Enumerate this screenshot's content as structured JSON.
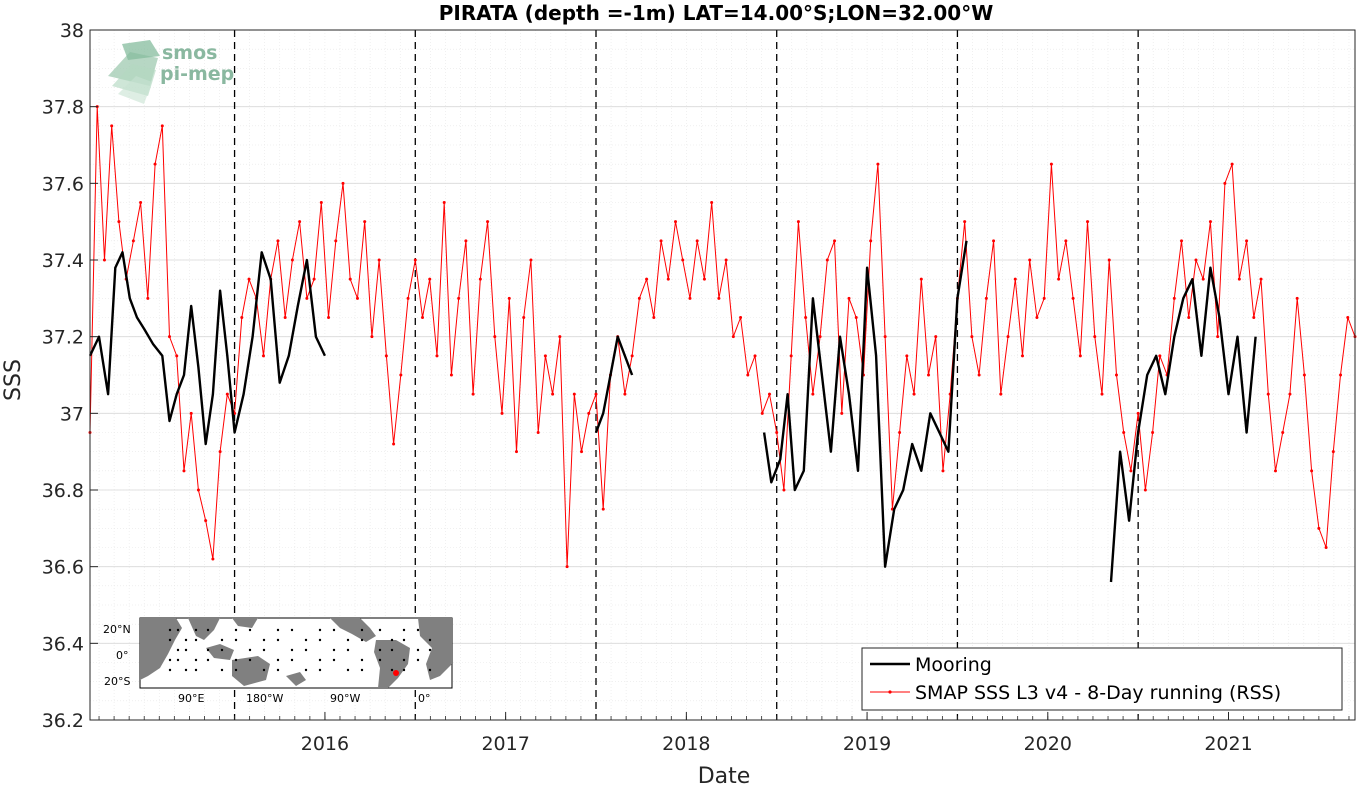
{
  "chart_data": {
    "type": "line",
    "title": "PIRATA (depth =-1m) LAT=14.00°S;LON=32.00°W",
    "xlabel": "Date",
    "ylabel": "SSS",
    "xlim": [
      2015.2,
      2022.2
    ],
    "ylim": [
      36.2,
      38.0
    ],
    "yticks": [
      "36.2",
      "36.4",
      "36.6",
      "36.8",
      "37",
      "37.2",
      "37.4",
      "37.6",
      "37.8",
      "38"
    ],
    "xticks": [
      "2016",
      "2017",
      "2018",
      "2019",
      "2020",
      "2021"
    ],
    "year_lines": [
      2016,
      2017,
      2018,
      2019,
      2020,
      2021
    ],
    "grid": "on",
    "legend_position": "bottom-right",
    "series": [
      {
        "name": "Mooring",
        "color": "#000000",
        "segments": [
          {
            "x": [
              2015.2,
              2015.25,
              2015.3,
              2015.34,
              2015.38,
              2015.42,
              2015.46,
              2015.5,
              2015.55,
              2015.6,
              2015.64,
              2015.68,
              2015.72,
              2015.76,
              2015.8,
              2015.84,
              2015.88,
              2015.92,
              2015.96,
              2016.0,
              2016.05,
              2016.1,
              2016.15,
              2016.2,
              2016.25,
              2016.3,
              2016.35,
              2016.4,
              2016.45,
              2016.5
            ],
            "y": [
              37.15,
              37.2,
              37.05,
              37.38,
              37.42,
              37.3,
              37.25,
              37.22,
              37.18,
              37.15,
              36.98,
              37.05,
              37.1,
              37.28,
              37.12,
              36.92,
              37.05,
              37.32,
              37.15,
              36.95,
              37.05,
              37.2,
              37.42,
              37.35,
              37.08,
              37.15,
              37.28,
              37.4,
              37.2,
              37.15
            ]
          },
          {
            "x": [
              2018.0,
              2018.04,
              2018.08,
              2018.12,
              2018.16,
              2018.2
            ],
            "y": [
              36.95,
              37.0,
              37.1,
              37.2,
              37.15,
              37.1
            ]
          },
          {
            "x": [
              2018.93,
              2018.97,
              2019.02,
              2019.06,
              2019.1,
              2019.15,
              2019.2,
              2019.25,
              2019.3,
              2019.35,
              2019.4,
              2019.45,
              2019.5,
              2019.55,
              2019.6,
              2019.65,
              2019.7,
              2019.75,
              2019.8,
              2019.85,
              2019.9,
              2019.95,
              2020.0,
              2020.05
            ],
            "y": [
              36.95,
              36.82,
              36.88,
              37.05,
              36.8,
              36.85,
              37.3,
              37.1,
              36.9,
              37.2,
              37.05,
              36.85,
              37.38,
              37.15,
              36.6,
              36.75,
              36.8,
              36.92,
              36.85,
              37.0,
              36.95,
              36.9,
              37.3,
              37.45
            ]
          },
          {
            "x": [
              2020.85,
              2020.9,
              2020.95,
              2021.0,
              2021.05,
              2021.1,
              2021.15,
              2021.2,
              2021.25,
              2021.3,
              2021.35,
              2021.4,
              2021.45,
              2021.5,
              2021.55,
              2021.6,
              2021.65
            ],
            "y": [
              36.56,
              36.9,
              36.72,
              36.95,
              37.1,
              37.15,
              37.05,
              37.2,
              37.3,
              37.35,
              37.15,
              37.38,
              37.25,
              37.05,
              37.2,
              36.95,
              37.2
            ]
          }
        ]
      },
      {
        "name": "SMAP SSS L3 v4 - 8-Day running (RSS)",
        "color": "#ff0000",
        "x": [
          2015.2,
          2015.24,
          2015.28,
          2015.32,
          2015.36,
          2015.4,
          2015.44,
          2015.48,
          2015.52,
          2015.56,
          2015.6,
          2015.64,
          2015.68,
          2015.72,
          2015.76,
          2015.8,
          2015.84,
          2015.88,
          2015.92,
          2015.96,
          2016.0,
          2016.04,
          2016.08,
          2016.12,
          2016.16,
          2016.2,
          2016.24,
          2016.28,
          2016.32,
          2016.36,
          2016.4,
          2016.44,
          2016.48,
          2016.52,
          2016.56,
          2016.6,
          2016.64,
          2016.68,
          2016.72,
          2016.76,
          2016.8,
          2016.84,
          2016.88,
          2016.92,
          2016.96,
          2017.0,
          2017.04,
          2017.08,
          2017.12,
          2017.16,
          2017.2,
          2017.24,
          2017.28,
          2017.32,
          2017.36,
          2017.4,
          2017.44,
          2017.48,
          2017.52,
          2017.56,
          2017.6,
          2017.64,
          2017.68,
          2017.72,
          2017.76,
          2017.8,
          2017.84,
          2017.88,
          2017.92,
          2017.96,
          2018.0,
          2018.04,
          2018.08,
          2018.12,
          2018.16,
          2018.2,
          2018.24,
          2018.28,
          2018.32,
          2018.36,
          2018.4,
          2018.44,
          2018.48,
          2018.52,
          2018.56,
          2018.6,
          2018.64,
          2018.68,
          2018.72,
          2018.76,
          2018.8,
          2018.84,
          2018.88,
          2018.92,
          2018.96,
          2019.0,
          2019.04,
          2019.08,
          2019.12,
          2019.16,
          2019.2,
          2019.24,
          2019.28,
          2019.32,
          2019.36,
          2019.4,
          2019.44,
          2019.48,
          2019.52,
          2019.56,
          2019.6,
          2019.64,
          2019.68,
          2019.72,
          2019.76,
          2019.8,
          2019.84,
          2019.88,
          2019.92,
          2019.96,
          2020.0,
          2020.04,
          2020.08,
          2020.12,
          2020.16,
          2020.2,
          2020.24,
          2020.28,
          2020.32,
          2020.36,
          2020.4,
          2020.44,
          2020.48,
          2020.52,
          2020.56,
          2020.6,
          2020.64,
          2020.68,
          2020.72,
          2020.76,
          2020.8,
          2020.84,
          2020.88,
          2020.92,
          2020.96,
          2021.0,
          2021.04,
          2021.08,
          2021.12,
          2021.16,
          2021.2,
          2021.24,
          2021.28,
          2021.32,
          2021.36,
          2021.4,
          2021.44,
          2021.48,
          2021.52,
          2021.56,
          2021.6,
          2021.64,
          2021.68,
          2021.72,
          2021.76,
          2021.8,
          2021.84,
          2021.88,
          2021.92,
          2021.96,
          2022.0,
          2022.04,
          2022.08,
          2022.12,
          2022.16,
          2022.2
        ],
        "y": [
          36.95,
          37.8,
          37.4,
          37.75,
          37.5,
          37.35,
          37.45,
          37.55,
          37.3,
          37.65,
          37.75,
          37.2,
          37.15,
          36.85,
          37.0,
          36.8,
          36.72,
          36.62,
          36.9,
          37.05,
          37.0,
          37.25,
          37.35,
          37.3,
          37.15,
          37.35,
          37.45,
          37.25,
          37.4,
          37.5,
          37.3,
          37.35,
          37.55,
          37.25,
          37.45,
          37.6,
          37.35,
          37.3,
          37.5,
          37.2,
          37.4,
          37.15,
          36.92,
          37.1,
          37.3,
          37.4,
          37.25,
          37.35,
          37.15,
          37.55,
          37.1,
          37.3,
          37.45,
          37.05,
          37.35,
          37.5,
          37.2,
          37.0,
          37.3,
          36.9,
          37.25,
          37.4,
          36.95,
          37.15,
          37.05,
          37.2,
          36.6,
          37.05,
          36.9,
          37.0,
          37.05,
          36.75,
          37.1,
          37.2,
          37.05,
          37.15,
          37.3,
          37.35,
          37.25,
          37.45,
          37.35,
          37.5,
          37.4,
          37.3,
          37.45,
          37.35,
          37.55,
          37.3,
          37.4,
          37.2,
          37.25,
          37.1,
          37.15,
          37.0,
          37.05,
          36.95,
          36.8,
          37.15,
          37.5,
          37.25,
          37.05,
          37.2,
          37.4,
          37.45,
          37.0,
          37.3,
          37.25,
          37.1,
          37.45,
          37.65,
          37.2,
          36.75,
          36.95,
          37.15,
          37.05,
          37.35,
          37.1,
          37.2,
          36.85,
          37.05,
          37.3,
          37.5,
          37.2,
          37.1,
          37.3,
          37.45,
          37.05,
          37.2,
          37.35,
          37.15,
          37.4,
          37.25,
          37.3,
          37.65,
          37.35,
          37.45,
          37.3,
          37.15,
          37.5,
          37.2,
          37.05,
          37.4,
          37.1,
          36.95,
          36.85,
          37.0,
          36.8,
          36.95,
          37.15,
          37.1,
          37.3,
          37.45,
          37.25,
          37.4,
          37.35,
          37.5,
          37.2,
          37.6,
          37.65,
          37.35,
          37.45,
          37.25,
          37.35,
          37.05,
          36.85,
          36.95,
          37.05,
          37.3,
          37.1,
          36.85,
          36.7,
          36.65,
          36.9,
          37.1,
          37.25,
          37.2
        ]
      }
    ],
    "inset_map": {
      "lat_labels": [
        "20°N",
        "0°",
        "20°S"
      ],
      "lon_labels": [
        "90°E",
        "180°W",
        "90°W",
        "0°"
      ],
      "marker_color": "#ff0000"
    }
  },
  "logo": {
    "line1": "smos",
    "line2": "pi-mep"
  }
}
